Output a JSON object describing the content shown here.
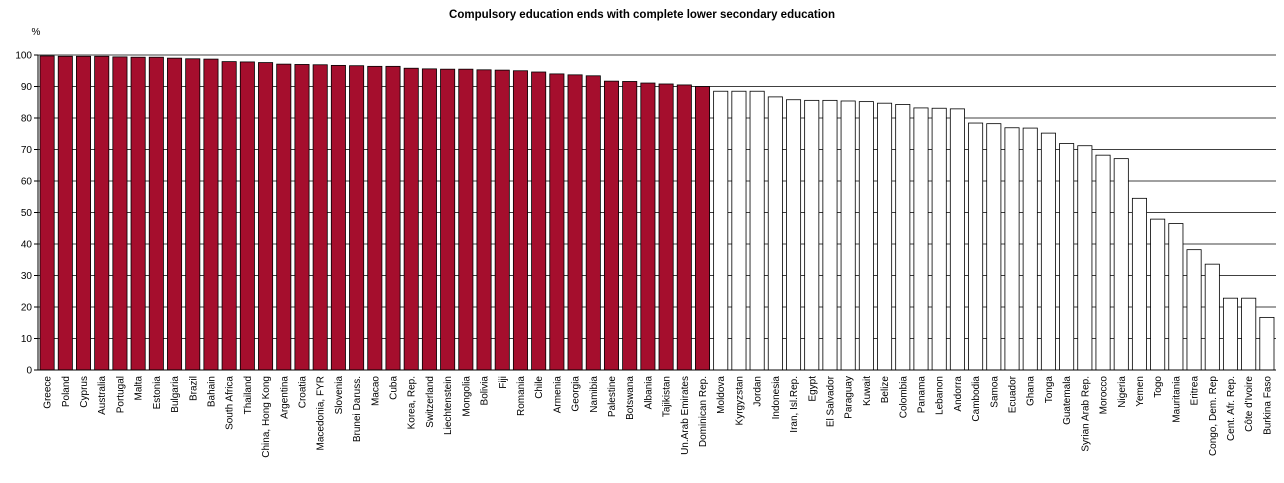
{
  "chart_data": {
    "type": "bar",
    "title": "Compulsory education ends with complete lower secondary education",
    "ylabel": "%",
    "xlabel": "",
    "ylim": [
      0,
      100
    ],
    "yticks": [
      0,
      10,
      20,
      30,
      40,
      50,
      60,
      70,
      80,
      90,
      100
    ],
    "grid": true,
    "colors": {
      "filled": "#a50e2d",
      "unfilled": "#ffffff",
      "edge": "#000000"
    },
    "categories": [
      "Greece",
      "Poland",
      "Cyprus",
      "Australia",
      "Portugal",
      "Malta",
      "Estonia",
      "Bulgaria",
      "Brazil",
      "Bahain",
      "South Africa",
      "Thailand",
      "China, Hong Kong",
      "Argentina",
      "Croatia",
      "Macedonia, FYR",
      "Slovenia",
      "Brunei Daruss.",
      "Macao",
      "Cuba",
      "Korea, Rep.",
      "Switzerland",
      "Liechtenstein",
      "Mongolia",
      "Bolivia",
      "Fiji",
      "Romania",
      "Chile",
      "Armenia",
      "Georgia",
      "Namibia",
      "Palestine",
      "Botswana",
      "Albania",
      "Tajikistan",
      "Un.Arab Emirates",
      "Dominican Rep.",
      "Moldova",
      "Kyrgyzstan",
      "Jordan",
      "Indonesia",
      "Iran, Isl.Rep.",
      "Egypt",
      "El Salvador",
      "Paraguay",
      "Kuwait",
      "Belize",
      "Colombia",
      "Panama",
      "Lebanon",
      "Andorra",
      "Cambodia",
      "Samoa",
      "Ecuador",
      "Ghana",
      "Tonga",
      "Guatemala",
      "Syrian Arab Rep.",
      "Morocco",
      "Nigeria",
      "Yemen",
      "Togo",
      "Mauritania",
      "Eritrea",
      "Congo, Dem. Rep",
      "Cent. Afr. Rep.",
      "Côte d'Ivoire",
      "Burkina Faso"
    ],
    "values": [
      99.7,
      99.6,
      99.6,
      99.6,
      99.4,
      99.3,
      99.3,
      99.0,
      98.8,
      98.7,
      97.9,
      97.8,
      97.6,
      97.1,
      97.0,
      96.9,
      96.7,
      96.6,
      96.4,
      96.4,
      95.8,
      95.6,
      95.5,
      95.5,
      95.3,
      95.2,
      95.0,
      94.6,
      94.0,
      93.7,
      93.4,
      91.7,
      91.6,
      91.1,
      90.8,
      90.5,
      90.0,
      88.5,
      88.5,
      88.5,
      86.7,
      85.8,
      85.6,
      85.6,
      85.4,
      85.2,
      84.7,
      84.3,
      83.2,
      83.1,
      82.9,
      78.4,
      78.2,
      76.9,
      76.8,
      75.2,
      71.9,
      71.2,
      68.2,
      67.1,
      54.5,
      47.9,
      46.5,
      38.2,
      33.6,
      22.8,
      22.8,
      16.7
    ],
    "filled": [
      true,
      true,
      true,
      true,
      true,
      true,
      true,
      true,
      true,
      true,
      true,
      true,
      true,
      true,
      true,
      true,
      true,
      true,
      true,
      true,
      true,
      true,
      true,
      true,
      true,
      true,
      true,
      true,
      true,
      true,
      true,
      true,
      true,
      true,
      true,
      true,
      true,
      false,
      false,
      false,
      false,
      false,
      false,
      false,
      false,
      false,
      false,
      false,
      false,
      false,
      false,
      false,
      false,
      false,
      false,
      false,
      false,
      false,
      false,
      false,
      false,
      false,
      false,
      false,
      false,
      false,
      false,
      false
    ]
  }
}
